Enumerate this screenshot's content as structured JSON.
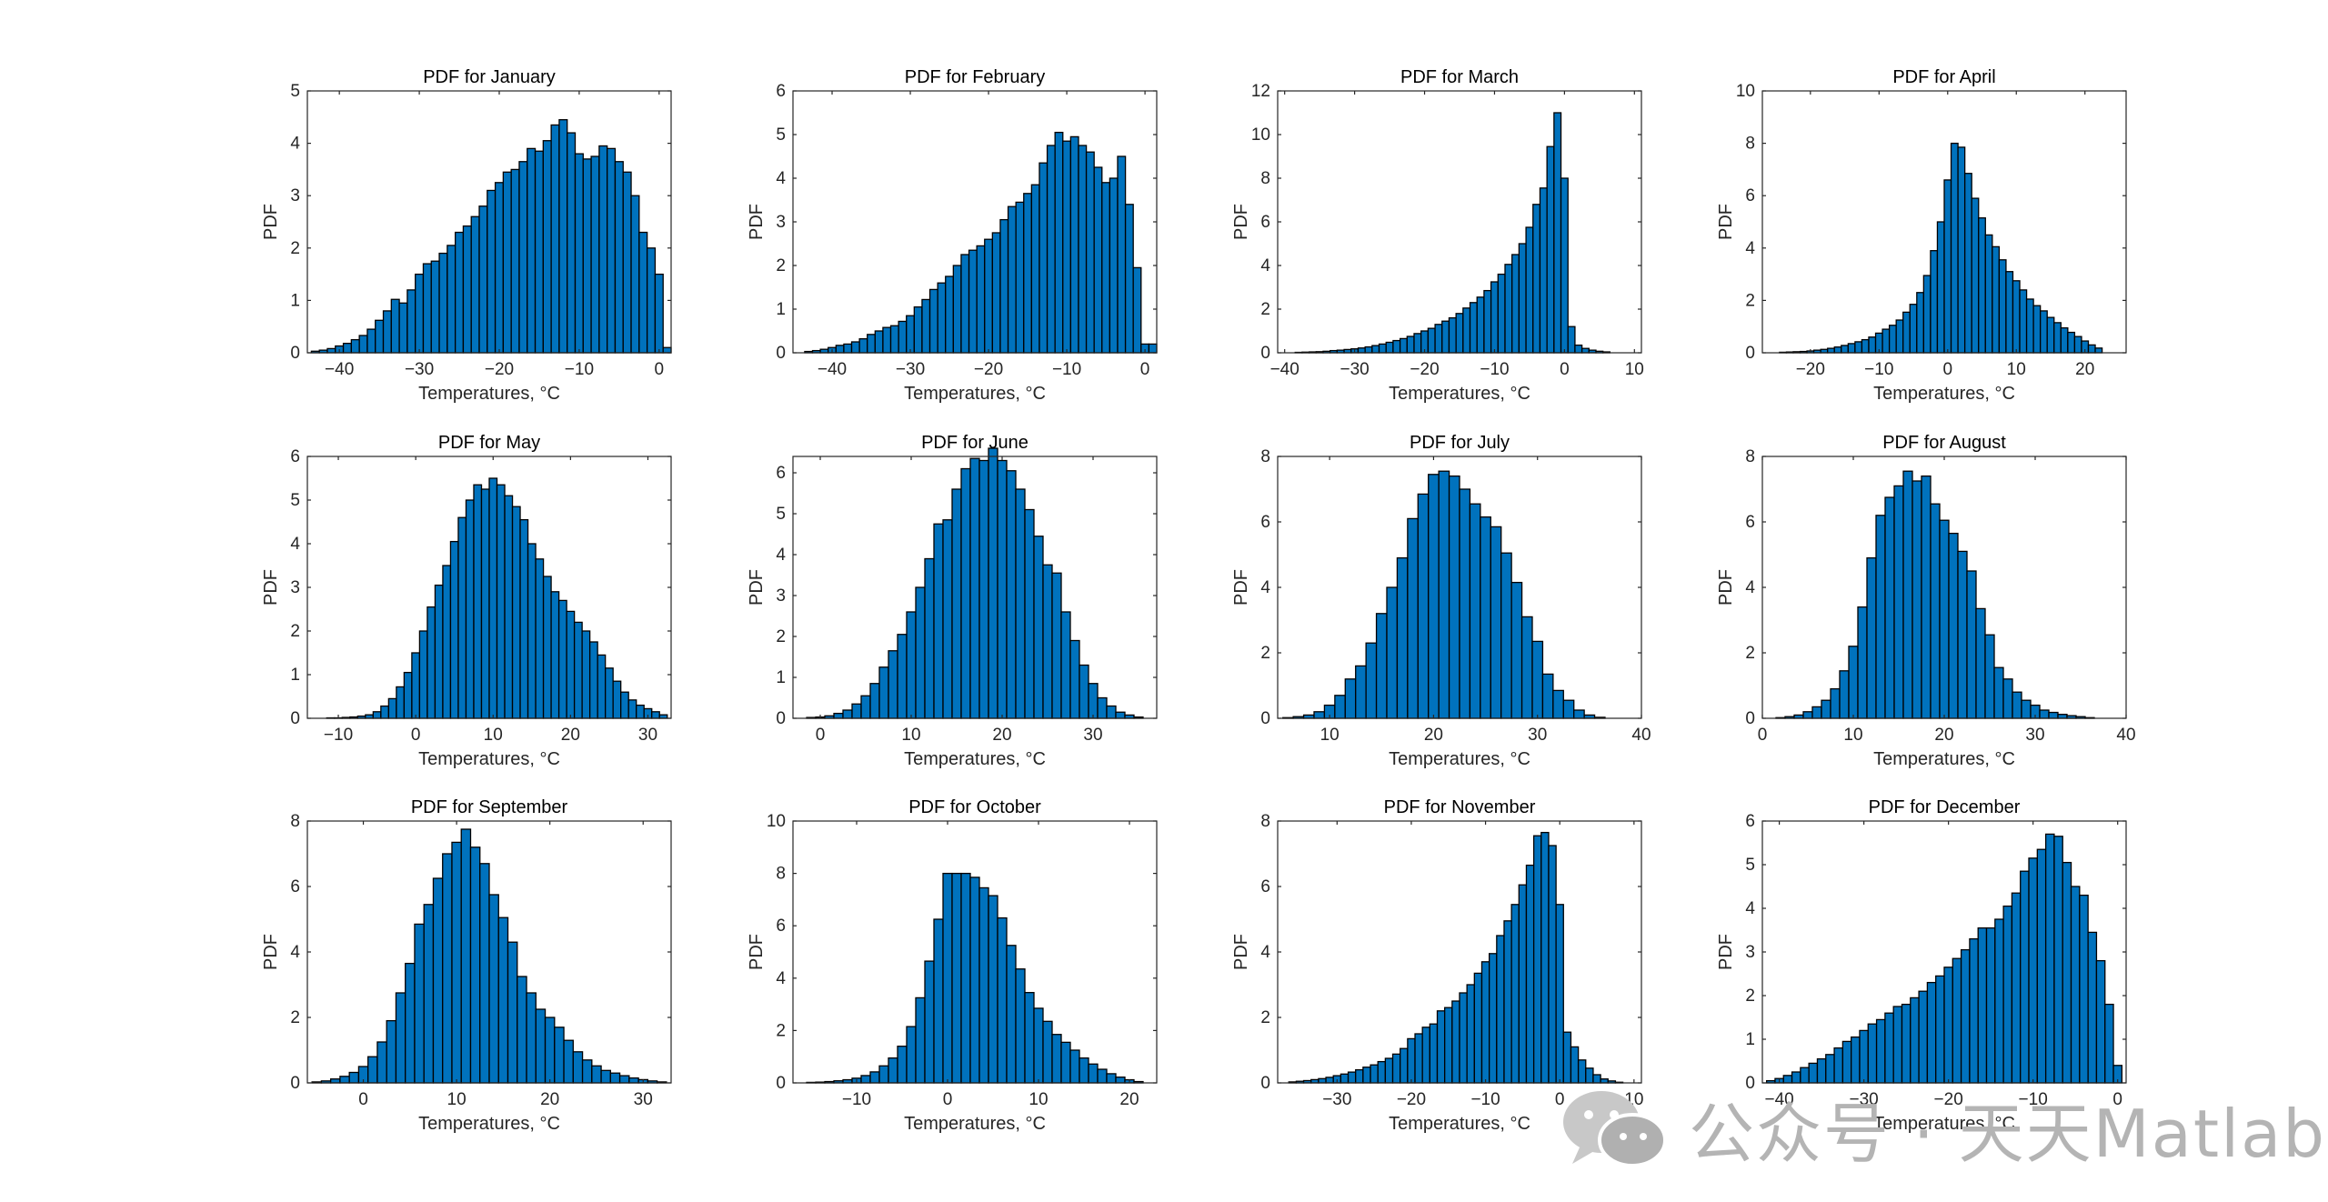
{
  "chart_data": [
    {
      "type": "bar",
      "title": "PDF for January",
      "xlabel": "Temperatures, °C",
      "ylabel": "PDF",
      "xlim": [
        -44,
        1.5
      ],
      "ylim": [
        0,
        5
      ],
      "xticks": [
        -40,
        -30,
        -20,
        -10,
        0
      ],
      "yticks": [
        0,
        1,
        2,
        3,
        4,
        5
      ],
      "bin_width": 1,
      "x": [
        -43,
        -42,
        -41,
        -40,
        -39,
        -38,
        -37,
        -36,
        -35,
        -34,
        -33,
        -32,
        -31,
        -30,
        -29,
        -28,
        -27,
        -26,
        -25,
        -24,
        -23,
        -22,
        -21,
        -20,
        -19,
        -18,
        -17,
        -16,
        -15,
        -14,
        -13,
        -12,
        -11,
        -10,
        -9,
        -8,
        -7,
        -6,
        -5,
        -4,
        -3,
        -2,
        -1,
        0,
        1
      ],
      "values": [
        0.03,
        0.05,
        0.08,
        0.13,
        0.18,
        0.25,
        0.33,
        0.45,
        0.62,
        0.8,
        1.02,
        0.95,
        1.2,
        1.5,
        1.7,
        1.75,
        1.9,
        2.05,
        2.3,
        2.42,
        2.6,
        2.8,
        3.1,
        3.25,
        3.45,
        3.5,
        3.65,
        3.9,
        3.85,
        4.05,
        4.35,
        4.45,
        4.2,
        3.8,
        3.7,
        3.75,
        3.95,
        3.9,
        3.65,
        3.45,
        3.0,
        2.3,
        2.0,
        1.5,
        0.1
      ]
    },
    {
      "type": "bar",
      "title": "PDF for February",
      "xlabel": "Temperatures, °C",
      "ylabel": "PDF",
      "xlim": [
        -45,
        1.5
      ],
      "ylim": [
        0,
        6
      ],
      "xticks": [
        -40,
        -30,
        -20,
        -10,
        0
      ],
      "yticks": [
        0,
        1,
        2,
        3,
        4,
        5,
        6
      ],
      "bin_width": 1,
      "x": [
        -43,
        -42,
        -41,
        -40,
        -39,
        -38,
        -37,
        -36,
        -35,
        -34,
        -33,
        -32,
        -31,
        -30,
        -29,
        -28,
        -27,
        -26,
        -25,
        -24,
        -23,
        -22,
        -21,
        -20,
        -19,
        -18,
        -17,
        -16,
        -15,
        -14,
        -13,
        -12,
        -11,
        -10,
        -9,
        -8,
        -7,
        -6,
        -5,
        -4,
        -3,
        -2,
        -1,
        0,
        1
      ],
      "values": [
        0.03,
        0.05,
        0.08,
        0.12,
        0.17,
        0.2,
        0.25,
        0.32,
        0.42,
        0.5,
        0.58,
        0.62,
        0.72,
        0.85,
        1.05,
        1.22,
        1.45,
        1.6,
        1.75,
        2.0,
        2.25,
        2.35,
        2.45,
        2.6,
        2.75,
        3.05,
        3.35,
        3.45,
        3.65,
        3.85,
        4.35,
        4.75,
        5.05,
        4.85,
        4.95,
        4.75,
        4.6,
        4.25,
        3.9,
        4.0,
        4.5,
        3.4,
        1.95,
        0.2,
        0.2
      ]
    },
    {
      "type": "bar",
      "title": "PDF for March",
      "xlabel": "Temperatures, °C",
      "ylabel": "PDF",
      "xlim": [
        -41,
        11
      ],
      "ylim": [
        0,
        12
      ],
      "xticks": [
        -40,
        -30,
        -20,
        -10,
        0,
        10
      ],
      "yticks": [
        0,
        2,
        4,
        6,
        8,
        10,
        12
      ],
      "bin_width": 1,
      "x": [
        -38,
        -37,
        -36,
        -35,
        -34,
        -33,
        -32,
        -31,
        -30,
        -29,
        -28,
        -27,
        -26,
        -25,
        -24,
        -23,
        -22,
        -21,
        -20,
        -19,
        -18,
        -17,
        -16,
        -15,
        -14,
        -13,
        -12,
        -11,
        -10,
        -9,
        -8,
        -7,
        -6,
        -5,
        -4,
        -3,
        -2,
        -1,
        0,
        1,
        2,
        3,
        4,
        5,
        6
      ],
      "values": [
        0.02,
        0.03,
        0.04,
        0.05,
        0.07,
        0.1,
        0.12,
        0.15,
        0.18,
        0.22,
        0.27,
        0.33,
        0.4,
        0.48,
        0.56,
        0.65,
        0.75,
        0.88,
        1.0,
        1.12,
        1.3,
        1.45,
        1.6,
        1.8,
        2.05,
        2.3,
        2.55,
        2.85,
        3.25,
        3.6,
        4.05,
        4.5,
        5.0,
        5.75,
        6.8,
        7.55,
        9.45,
        11.0,
        8.0,
        1.2,
        0.35,
        0.2,
        0.12,
        0.07,
        0.04
      ]
    },
    {
      "type": "bar",
      "title": "PDF for April",
      "xlabel": "Temperatures, °C",
      "ylabel": "PDF",
      "xlim": [
        -27,
        26
      ],
      "ylim": [
        0,
        10
      ],
      "xticks": [
        -20,
        -10,
        0,
        10,
        20
      ],
      "yticks": [
        0,
        2,
        4,
        6,
        8,
        10
      ],
      "bin_width": 1,
      "x": [
        -24,
        -23,
        -22,
        -21,
        -20,
        -19,
        -18,
        -17,
        -16,
        -15,
        -14,
        -13,
        -12,
        -11,
        -10,
        -9,
        -8,
        -7,
        -6,
        -5,
        -4,
        -3,
        -2,
        -1,
        0,
        1,
        2,
        3,
        4,
        5,
        6,
        7,
        8,
        9,
        10,
        11,
        12,
        13,
        14,
        15,
        16,
        17,
        18,
        19,
        20,
        21,
        22
      ],
      "values": [
        0.02,
        0.03,
        0.04,
        0.05,
        0.07,
        0.1,
        0.13,
        0.17,
        0.22,
        0.28,
        0.35,
        0.42,
        0.5,
        0.6,
        0.75,
        0.9,
        1.05,
        1.25,
        1.55,
        1.85,
        2.3,
        2.95,
        3.9,
        5.0,
        6.6,
        8.0,
        7.85,
        6.85,
        5.9,
        5.15,
        4.5,
        4.05,
        3.55,
        3.1,
        2.75,
        2.4,
        2.05,
        1.8,
        1.6,
        1.35,
        1.15,
        0.95,
        0.78,
        0.62,
        0.45,
        0.3,
        0.18
      ]
    },
    {
      "type": "bar",
      "title": "PDF for May",
      "xlabel": "Temperatures, °C",
      "ylabel": "PDF",
      "xlim": [
        -14,
        33
      ],
      "ylim": [
        0,
        6
      ],
      "xticks": [
        -10,
        0,
        10,
        20,
        30
      ],
      "yticks": [
        0,
        1,
        2,
        3,
        4,
        5,
        6
      ],
      "bin_width": 1,
      "x": [
        -11,
        -10,
        -9,
        -8,
        -7,
        -6,
        -5,
        -4,
        -3,
        -2,
        -1,
        0,
        1,
        2,
        3,
        4,
        5,
        6,
        7,
        8,
        9,
        10,
        11,
        12,
        13,
        14,
        15,
        16,
        17,
        18,
        19,
        20,
        21,
        22,
        23,
        24,
        25,
        26,
        27,
        28,
        29,
        30,
        31,
        32
      ],
      "values": [
        0.01,
        0.01,
        0.02,
        0.03,
        0.05,
        0.08,
        0.15,
        0.28,
        0.45,
        0.72,
        1.05,
        1.5,
        2.0,
        2.55,
        3.05,
        3.5,
        4.05,
        4.6,
        5.0,
        5.35,
        5.25,
        5.5,
        5.35,
        5.1,
        4.85,
        4.55,
        4.0,
        3.65,
        3.25,
        2.9,
        2.7,
        2.45,
        2.2,
        2.0,
        1.75,
        1.45,
        1.15,
        0.85,
        0.6,
        0.42,
        0.3,
        0.22,
        0.15,
        0.08
      ]
    },
    {
      "type": "bar",
      "title": "PDF for June",
      "xlabel": "Temperatures, °C",
      "ylabel": "PDF",
      "xlim": [
        -3,
        37
      ],
      "ylim": [
        0,
        6.4
      ],
      "xticks": [
        0,
        10,
        20,
        30
      ],
      "yticks": [
        0,
        1,
        2,
        3,
        4,
        5,
        6
      ],
      "bin_width": 1,
      "x": [
        -1,
        0,
        1,
        2,
        3,
        4,
        5,
        6,
        7,
        8,
        9,
        10,
        11,
        12,
        13,
        14,
        15,
        16,
        17,
        18,
        19,
        20,
        21,
        22,
        23,
        24,
        25,
        26,
        27,
        28,
        29,
        30,
        31,
        32,
        33,
        34,
        35
      ],
      "values": [
        0.02,
        0.03,
        0.06,
        0.12,
        0.2,
        0.35,
        0.55,
        0.85,
        1.25,
        1.65,
        2.05,
        2.6,
        3.2,
        3.9,
        4.75,
        4.85,
        5.6,
        6.1,
        6.35,
        6.3,
        6.6,
        6.3,
        6.05,
        5.6,
        5.1,
        4.45,
        3.75,
        3.55,
        2.6,
        1.9,
        1.3,
        0.85,
        0.5,
        0.3,
        0.15,
        0.08,
        0.03
      ]
    },
    {
      "type": "bar",
      "title": "PDF for July",
      "xlabel": "Temperatures, °C",
      "ylabel": "PDF",
      "xlim": [
        5,
        40
      ],
      "ylim": [
        0,
        8
      ],
      "xticks": [
        10,
        20,
        30,
        40
      ],
      "yticks": [
        0,
        2,
        4,
        6,
        8
      ],
      "bin_width": 1,
      "x": [
        6,
        7,
        8,
        9,
        10,
        11,
        12,
        13,
        14,
        15,
        16,
        17,
        18,
        19,
        20,
        21,
        22,
        23,
        24,
        25,
        26,
        27,
        28,
        29,
        30,
        31,
        32,
        33,
        34,
        35,
        36
      ],
      "values": [
        0.02,
        0.05,
        0.1,
        0.2,
        0.4,
        0.7,
        1.2,
        1.6,
        2.3,
        3.2,
        4.0,
        4.9,
        6.1,
        6.85,
        7.45,
        7.55,
        7.4,
        7.0,
        6.55,
        6.15,
        5.85,
        5.05,
        4.15,
        3.1,
        2.35,
        1.35,
        0.85,
        0.55,
        0.25,
        0.1,
        0.03
      ]
    },
    {
      "type": "bar",
      "title": "PDF for August",
      "xlabel": "Temperatures, °C",
      "ylabel": "PDF",
      "xlim": [
        0,
        40
      ],
      "ylim": [
        0,
        8
      ],
      "xticks": [
        0,
        10,
        20,
        30,
        40
      ],
      "yticks": [
        0,
        2,
        4,
        6,
        8
      ],
      "bin_width": 1,
      "x": [
        2,
        3,
        4,
        5,
        6,
        7,
        8,
        9,
        10,
        11,
        12,
        13,
        14,
        15,
        16,
        17,
        18,
        19,
        20,
        21,
        22,
        23,
        24,
        25,
        26,
        27,
        28,
        29,
        30,
        31,
        32,
        33,
        34,
        35,
        36
      ],
      "values": [
        0.02,
        0.05,
        0.1,
        0.2,
        0.35,
        0.55,
        0.9,
        1.45,
        2.2,
        3.4,
        4.9,
        6.2,
        6.75,
        7.1,
        7.55,
        7.25,
        7.4,
        6.55,
        6.05,
        5.65,
        5.1,
        4.5,
        3.35,
        2.55,
        1.55,
        1.2,
        0.8,
        0.55,
        0.4,
        0.25,
        0.18,
        0.12,
        0.08,
        0.05,
        0.02
      ]
    },
    {
      "type": "bar",
      "title": "PDF for September",
      "xlabel": "Temperatures, °C",
      "ylabel": "PDF",
      "xlim": [
        -6,
        33
      ],
      "ylim": [
        0,
        8
      ],
      "xticks": [
        0,
        10,
        20,
        30
      ],
      "yticks": [
        0,
        2,
        4,
        6,
        8
      ],
      "bin_width": 1,
      "x": [
        -5,
        -4,
        -3,
        -2,
        -1,
        0,
        1,
        2,
        3,
        4,
        5,
        6,
        7,
        8,
        9,
        10,
        11,
        12,
        13,
        14,
        15,
        16,
        17,
        18,
        19,
        20,
        21,
        22,
        23,
        24,
        25,
        26,
        27,
        28,
        29,
        30,
        31,
        32
      ],
      "values": [
        0.03,
        0.06,
        0.12,
        0.2,
        0.32,
        0.5,
        0.8,
        1.25,
        1.9,
        2.75,
        3.65,
        4.85,
        5.45,
        6.25,
        7.0,
        7.35,
        7.75,
        7.2,
        6.7,
        5.75,
        5.05,
        4.3,
        3.25,
        2.75,
        2.25,
        2.0,
        1.7,
        1.3,
        0.95,
        0.7,
        0.52,
        0.38,
        0.3,
        0.22,
        0.15,
        0.1,
        0.06,
        0.03
      ]
    },
    {
      "type": "bar",
      "title": "PDF for October",
      "xlabel": "Temperatures, °C",
      "ylabel": "PDF",
      "xlim": [
        -17,
        23
      ],
      "ylim": [
        0,
        10
      ],
      "xticks": [
        -10,
        0,
        10,
        20
      ],
      "yticks": [
        0,
        2,
        4,
        6,
        8,
        10
      ],
      "bin_width": 1,
      "x": [
        -15,
        -14,
        -13,
        -12,
        -11,
        -10,
        -9,
        -8,
        -7,
        -6,
        -5,
        -4,
        -3,
        -2,
        -1,
        0,
        1,
        2,
        3,
        4,
        5,
        6,
        7,
        8,
        9,
        10,
        11,
        12,
        13,
        14,
        15,
        16,
        17,
        18,
        19,
        20,
        21
      ],
      "values": [
        0.02,
        0.03,
        0.05,
        0.08,
        0.12,
        0.18,
        0.28,
        0.42,
        0.65,
        0.95,
        1.4,
        2.15,
        3.25,
        4.65,
        6.25,
        8.0,
        8.0,
        8.0,
        7.85,
        7.45,
        7.15,
        6.3,
        5.25,
        4.35,
        3.45,
        2.85,
        2.35,
        1.85,
        1.55,
        1.25,
        0.95,
        0.72,
        0.52,
        0.35,
        0.22,
        0.12,
        0.05
      ]
    },
    {
      "type": "bar",
      "title": "PDF for November",
      "xlabel": "Temperatures, °C",
      "ylabel": "PDF",
      "xlim": [
        -38,
        11
      ],
      "ylim": [
        0,
        8
      ],
      "xticks": [
        -30,
        -20,
        -10,
        0,
        10
      ],
      "yticks": [
        0,
        2,
        4,
        6,
        8
      ],
      "bin_width": 1,
      "x": [
        -36,
        -35,
        -34,
        -33,
        -32,
        -31,
        -30,
        -29,
        -28,
        -27,
        -26,
        -25,
        -24,
        -23,
        -22,
        -21,
        -20,
        -19,
        -18,
        -17,
        -16,
        -15,
        -14,
        -13,
        -12,
        -11,
        -10,
        -9,
        -8,
        -7,
        -6,
        -5,
        -4,
        -3,
        -2,
        -1,
        0,
        1,
        2,
        3,
        4,
        5,
        6,
        7,
        8
      ],
      "values": [
        0.03,
        0.05,
        0.07,
        0.1,
        0.13,
        0.17,
        0.22,
        0.27,
        0.33,
        0.4,
        0.48,
        0.55,
        0.65,
        0.75,
        0.88,
        1.05,
        1.35,
        1.5,
        1.7,
        1.8,
        2.2,
        2.3,
        2.5,
        2.75,
        3.0,
        3.35,
        3.7,
        3.95,
        4.5,
        4.95,
        5.45,
        6.05,
        6.65,
        7.55,
        7.65,
        7.25,
        5.45,
        1.55,
        1.1,
        0.7,
        0.45,
        0.25,
        0.12,
        0.06,
        0.02
      ]
    },
    {
      "type": "bar",
      "title": "PDF for December",
      "xlabel": "Temperatures, °C",
      "ylabel": "PDF",
      "xlim": [
        -42,
        1
      ],
      "ylim": [
        0,
        6
      ],
      "xticks": [
        -40,
        -30,
        -20,
        -10,
        0
      ],
      "yticks": [
        0,
        1,
        2,
        3,
        4,
        5,
        6
      ],
      "bin_width": 1,
      "x": [
        -41,
        -40,
        -39,
        -38,
        -37,
        -36,
        -35,
        -34,
        -33,
        -32,
        -31,
        -30,
        -29,
        -28,
        -27,
        -26,
        -25,
        -24,
        -23,
        -22,
        -21,
        -20,
        -19,
        -18,
        -17,
        -16,
        -15,
        -14,
        -13,
        -12,
        -11,
        -10,
        -9,
        -8,
        -7,
        -6,
        -5,
        -4,
        -3,
        -2,
        -1,
        0
      ],
      "values": [
        0.05,
        0.1,
        0.17,
        0.25,
        0.35,
        0.45,
        0.55,
        0.65,
        0.8,
        0.95,
        1.05,
        1.2,
        1.35,
        1.45,
        1.6,
        1.75,
        1.8,
        1.95,
        2.1,
        2.3,
        2.45,
        2.65,
        2.85,
        3.05,
        3.3,
        3.55,
        3.55,
        3.75,
        4.05,
        4.35,
        4.85,
        5.15,
        5.35,
        5.7,
        5.65,
        5.05,
        4.5,
        4.3,
        3.45,
        2.8,
        1.8,
        0.4
      ]
    }
  ],
  "colors": {
    "bar_fill": "#0072BD",
    "bar_edge": "#000000",
    "axes": "#262626",
    "text": "#262626"
  },
  "watermark": {
    "text": "公众号 · 天天Matlab",
    "icon": "wechat-icon"
  }
}
